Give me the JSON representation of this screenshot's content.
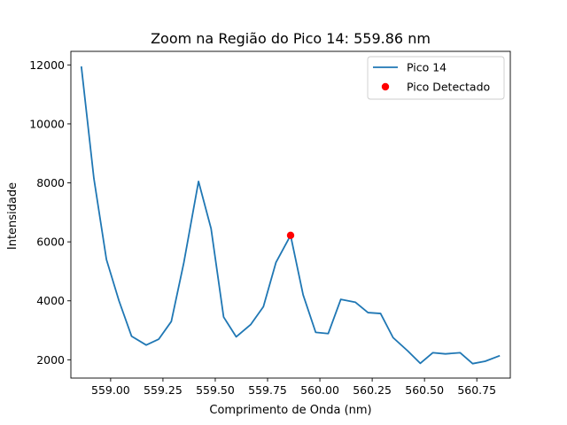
{
  "chart_data": {
    "type": "line",
    "title": "Zoom na Região do Pico 14: 559.86 nm",
    "xlabel": "Comprimento de Onda (nm)",
    "ylabel": "Intensidade",
    "xlim": [
      558.81,
      560.91
    ],
    "ylim": [
      1380,
      12460
    ],
    "xticks": [
      559.0,
      559.25,
      559.5,
      559.75,
      560.0,
      560.25,
      560.5,
      560.75
    ],
    "xtick_labels": [
      "559.00",
      "559.25",
      "559.50",
      "559.75",
      "560.00",
      "560.25",
      "560.50",
      "560.75"
    ],
    "yticks": [
      2000,
      4000,
      6000,
      8000,
      10000,
      12000
    ],
    "ytick_labels": [
      "2000",
      "4000",
      "6000",
      "8000",
      "10000",
      "12000"
    ],
    "grid": false,
    "legend_position": "top-right",
    "series": [
      {
        "name": "Pico 14",
        "color": "#1f77b4",
        "x": [
          558.86,
          558.92,
          558.98,
          559.04,
          559.1,
          559.17,
          559.23,
          559.29,
          559.35,
          559.42,
          559.48,
          559.54,
          559.6,
          559.67,
          559.73,
          559.79,
          559.86,
          559.92,
          559.98,
          560.04,
          560.1,
          560.17,
          560.23,
          560.29,
          560.35,
          560.42,
          560.48,
          560.54,
          560.6,
          560.67,
          560.73,
          560.79,
          560.86
        ],
        "y": [
          11950,
          8150,
          5400,
          4000,
          2800,
          2500,
          2700,
          3300,
          5300,
          8050,
          6450,
          3450,
          2780,
          3200,
          3800,
          5300,
          6220,
          4200,
          2930,
          2890,
          4050,
          3950,
          3600,
          3570,
          2750,
          2300,
          1880,
          2240,
          2200,
          2240,
          1870,
          1950,
          2140
        ]
      }
    ],
    "markers": [
      {
        "name": "Pico Detectado",
        "color": "#ff0000",
        "x": 559.86,
        "y": 6220
      }
    ]
  }
}
